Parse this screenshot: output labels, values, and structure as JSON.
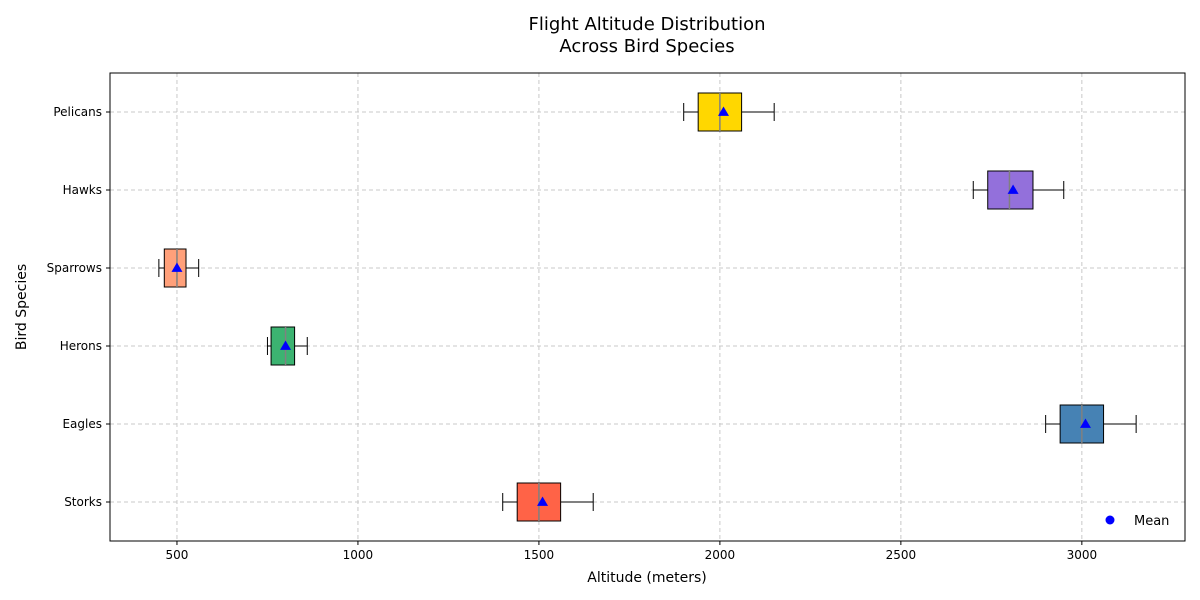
{
  "chart_data": {
    "type": "box",
    "orientation": "horizontal",
    "title_lines": [
      "Flight Altitude Distribution",
      "Across Bird Species"
    ],
    "xlabel": "Altitude (meters)",
    "ylabel": "Bird Species",
    "xlim": [
      315,
      3285
    ],
    "x_ticks": [
      500,
      1000,
      1500,
      2000,
      2500,
      3000
    ],
    "grid": true,
    "legend": {
      "position": "lower-right",
      "entries": [
        {
          "label": "Mean",
          "marker": "circle",
          "color": "#0000ff"
        }
      ]
    },
    "categories": [
      "Storks",
      "Eagles",
      "Herons",
      "Sparrows",
      "Hawks",
      "Pelicans"
    ],
    "series": [
      {
        "category": "Storks",
        "color": "#ff6347",
        "whisker_low": 1400,
        "q1": 1440,
        "median": 1500,
        "q3": 1560,
        "whisker_high": 1650,
        "mean": 1510
      },
      {
        "category": "Eagles",
        "color": "#4682b4",
        "whisker_low": 2900,
        "q1": 2940,
        "median": 3000,
        "q3": 3060,
        "whisker_high": 3150,
        "mean": 3010
      },
      {
        "category": "Herons",
        "color": "#3cb371",
        "whisker_low": 750,
        "q1": 760,
        "median": 800,
        "q3": 825,
        "whisker_high": 860,
        "mean": 800
      },
      {
        "category": "Sparrows",
        "color": "#ffa07a",
        "whisker_low": 450,
        "q1": 465,
        "median": 500,
        "q3": 525,
        "whisker_high": 560,
        "mean": 500
      },
      {
        "category": "Hawks",
        "color": "#9370db",
        "whisker_low": 2700,
        "q1": 2740,
        "median": 2800,
        "q3": 2865,
        "whisker_high": 2950,
        "mean": 2810
      },
      {
        "category": "Pelicans",
        "color": "#ffd700",
        "whisker_low": 1900,
        "q1": 1940,
        "median": 2000,
        "q3": 2060,
        "whisker_high": 2150,
        "mean": 2010
      }
    ],
    "median_color": "#808080",
    "mean_marker_color": "#0000ff"
  }
}
